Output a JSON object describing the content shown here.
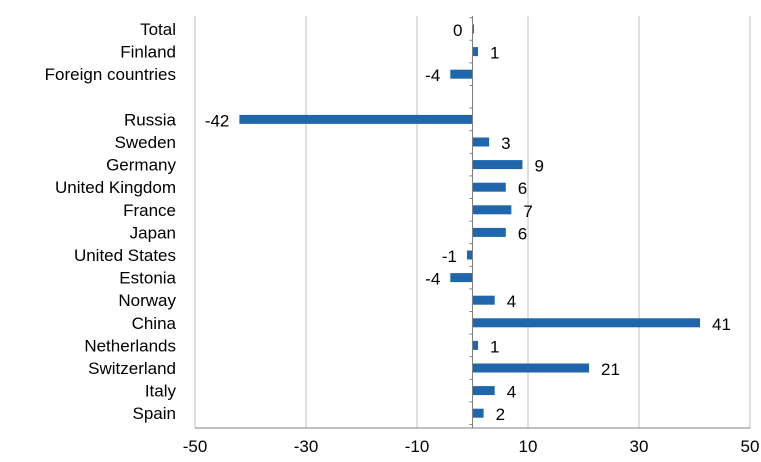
{
  "chart_data": {
    "type": "bar",
    "orientation": "horizontal",
    "categories": [
      "Total",
      "Finland",
      "Foreign countries",
      "",
      "Russia",
      "Sweden",
      "Germany",
      "United Kingdom",
      "France",
      "Japan",
      "United States",
      "Estonia",
      "Norway",
      "China",
      "Netherlands",
      "Switzerland",
      "Italy",
      "Spain"
    ],
    "values": [
      0,
      1,
      -4,
      null,
      -42,
      3,
      9,
      6,
      7,
      6,
      -1,
      -4,
      4,
      41,
      1,
      21,
      4,
      2
    ],
    "value_labels": [
      "0",
      "1",
      "-4",
      "",
      "-42",
      "3",
      "9",
      "6",
      "7",
      "6",
      "-1",
      "-4",
      "4",
      "41",
      "1",
      "21",
      "4",
      "2"
    ],
    "xlim": [
      -50,
      50
    ],
    "xticks": [
      -50,
      -30,
      -10,
      10,
      30,
      50
    ],
    "xtick_labels": [
      "-50",
      "-30",
      "-10",
      "10",
      "30",
      "50"
    ],
    "grid": "vertical",
    "legend": "none",
    "title": "",
    "xlabel": "",
    "ylabel": ""
  },
  "colors": {
    "bar": "#1f66ad",
    "grid": "#bfbfbf",
    "axis": "#808080",
    "text": "#000000"
  }
}
